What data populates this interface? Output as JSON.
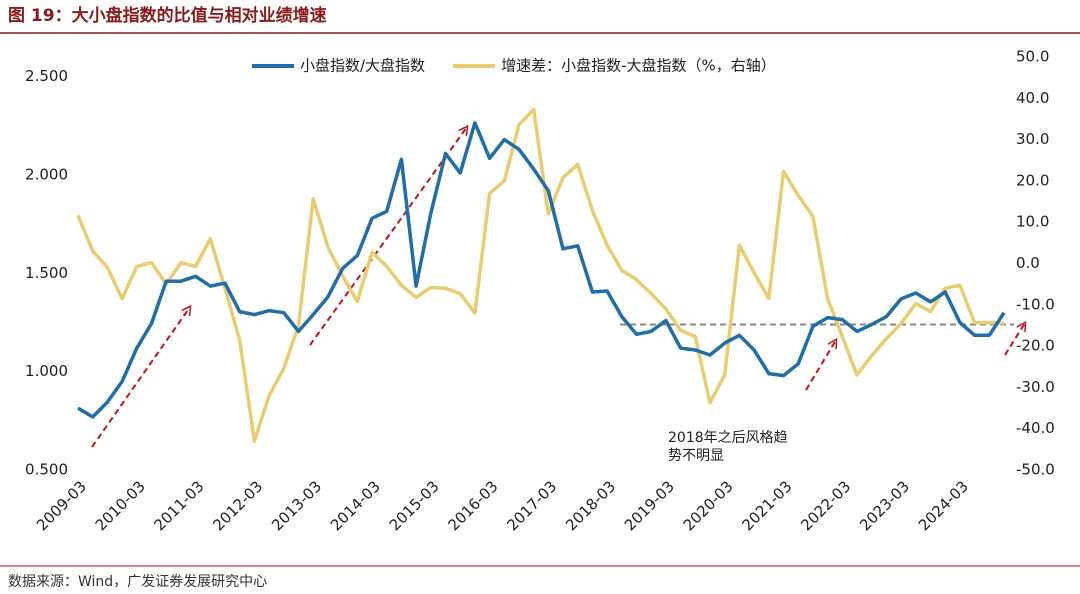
{
  "header": {
    "title": "图 19：大小盘指数的比值与相对业绩增速"
  },
  "chart_data": {
    "type": "line",
    "categories": [
      "2009-03",
      null,
      null,
      null,
      "2010-03",
      null,
      null,
      null,
      "2011-03",
      null,
      null,
      null,
      "2012-03",
      null,
      null,
      null,
      "2013-03",
      null,
      null,
      null,
      "2014-03",
      null,
      null,
      null,
      "2015-03",
      null,
      null,
      null,
      "2016-03",
      null,
      null,
      null,
      "2017-03",
      null,
      null,
      null,
      "2018-03",
      null,
      null,
      null,
      "2019-03",
      null,
      null,
      null,
      "2020-03",
      null,
      null,
      null,
      "2021-03",
      null,
      null,
      null,
      "2022-03",
      null,
      null,
      null,
      "2023-03",
      null,
      null,
      null,
      "2024-03",
      null,
      null,
      null
    ],
    "series": [
      {
        "name": "小盘指数/大盘指数",
        "color": "#1f6ea8",
        "values": [
          0.815,
          0.77,
          0.845,
          0.95,
          1.12,
          1.245,
          1.46,
          1.46,
          1.485,
          1.435,
          1.45,
          1.305,
          1.29,
          1.31,
          1.3,
          1.205,
          1.29,
          1.38,
          1.525,
          1.59,
          1.78,
          1.815,
          2.08,
          1.435,
          1.805,
          2.11,
          2.01,
          2.265,
          2.085,
          2.18,
          2.13,
          2.03,
          1.92,
          1.625,
          1.64,
          1.405,
          1.41,
          1.28,
          1.19,
          1.205,
          1.26,
          1.12,
          1.11,
          1.085,
          1.145,
          1.185,
          1.11,
          0.99,
          0.98,
          1.04,
          1.23,
          1.275,
          1.265,
          1.205,
          1.24,
          1.28,
          1.37,
          1.4,
          1.355,
          1.405,
          1.25,
          1.185,
          1.185,
          1.3
        ]
      },
      {
        "name": "增速差：小盘指数-大盘指数（%，右轴）",
        "color": "#e8cc6e",
        "axis": "y2",
        "values": [
          11.6,
          3,
          -1,
          -8.5,
          -0.7,
          0.2,
          -5,
          0.2,
          -0.7,
          6,
          -6,
          -18.6,
          -43,
          -32,
          -25.4,
          -15,
          15.7,
          4,
          -3,
          -9.2,
          2.7,
          -0.7,
          -5.3,
          -8.2,
          -5.8,
          -6,
          -7.3,
          -12,
          17,
          20,
          33.6,
          37.3,
          12,
          20.8,
          24,
          12.8,
          4.4,
          -1.7,
          -3.9,
          -7.3,
          -11,
          -16.2,
          -17.7,
          -33.7,
          -27,
          4.4,
          -2.2,
          -8.5,
          22.3,
          16.5,
          11.4,
          -8.5,
          -17.7,
          -27,
          -22.3,
          -18.2,
          -14.5,
          -9.7,
          -11.6,
          -6,
          -5.3,
          -14.3,
          -14.3,
          -14.5
        ]
      }
    ],
    "ylim": [
      0.5,
      2.6
    ],
    "yticks": [
      {
        "value": 0.5,
        "label": "0.500"
      },
      {
        "value": 1,
        "label": "1.000"
      },
      {
        "value": 1.5,
        "label": "1.500"
      },
      {
        "value": 2,
        "label": "2.000"
      },
      {
        "value": 2.5,
        "label": "2.500"
      }
    ],
    "y2lim": [
      -50,
      50
    ],
    "y2ticks": [
      {
        "value": -50,
        "label": "-50.0"
      },
      {
        "value": -40,
        "label": "-40.0"
      },
      {
        "value": -30,
        "label": "-30.0"
      },
      {
        "value": -20,
        "label": "-20.0"
      },
      {
        "value": -10,
        "label": "-10.0"
      },
      {
        "value": 0,
        "label": "0.0"
      },
      {
        "value": 10,
        "label": "10.0"
      },
      {
        "value": 20,
        "label": "20.0"
      },
      {
        "value": 30,
        "label": "30.0"
      },
      {
        "value": 40,
        "label": "40.0"
      },
      {
        "value": 50,
        "label": "50.0"
      }
    ],
    "hline": 1.24,
    "annotation": [
      "2018年之后风格趋",
      "势不明显"
    ],
    "legend": "top"
  },
  "footer": {
    "source": "数据来源：Wind，广发证券发展研究中心"
  }
}
